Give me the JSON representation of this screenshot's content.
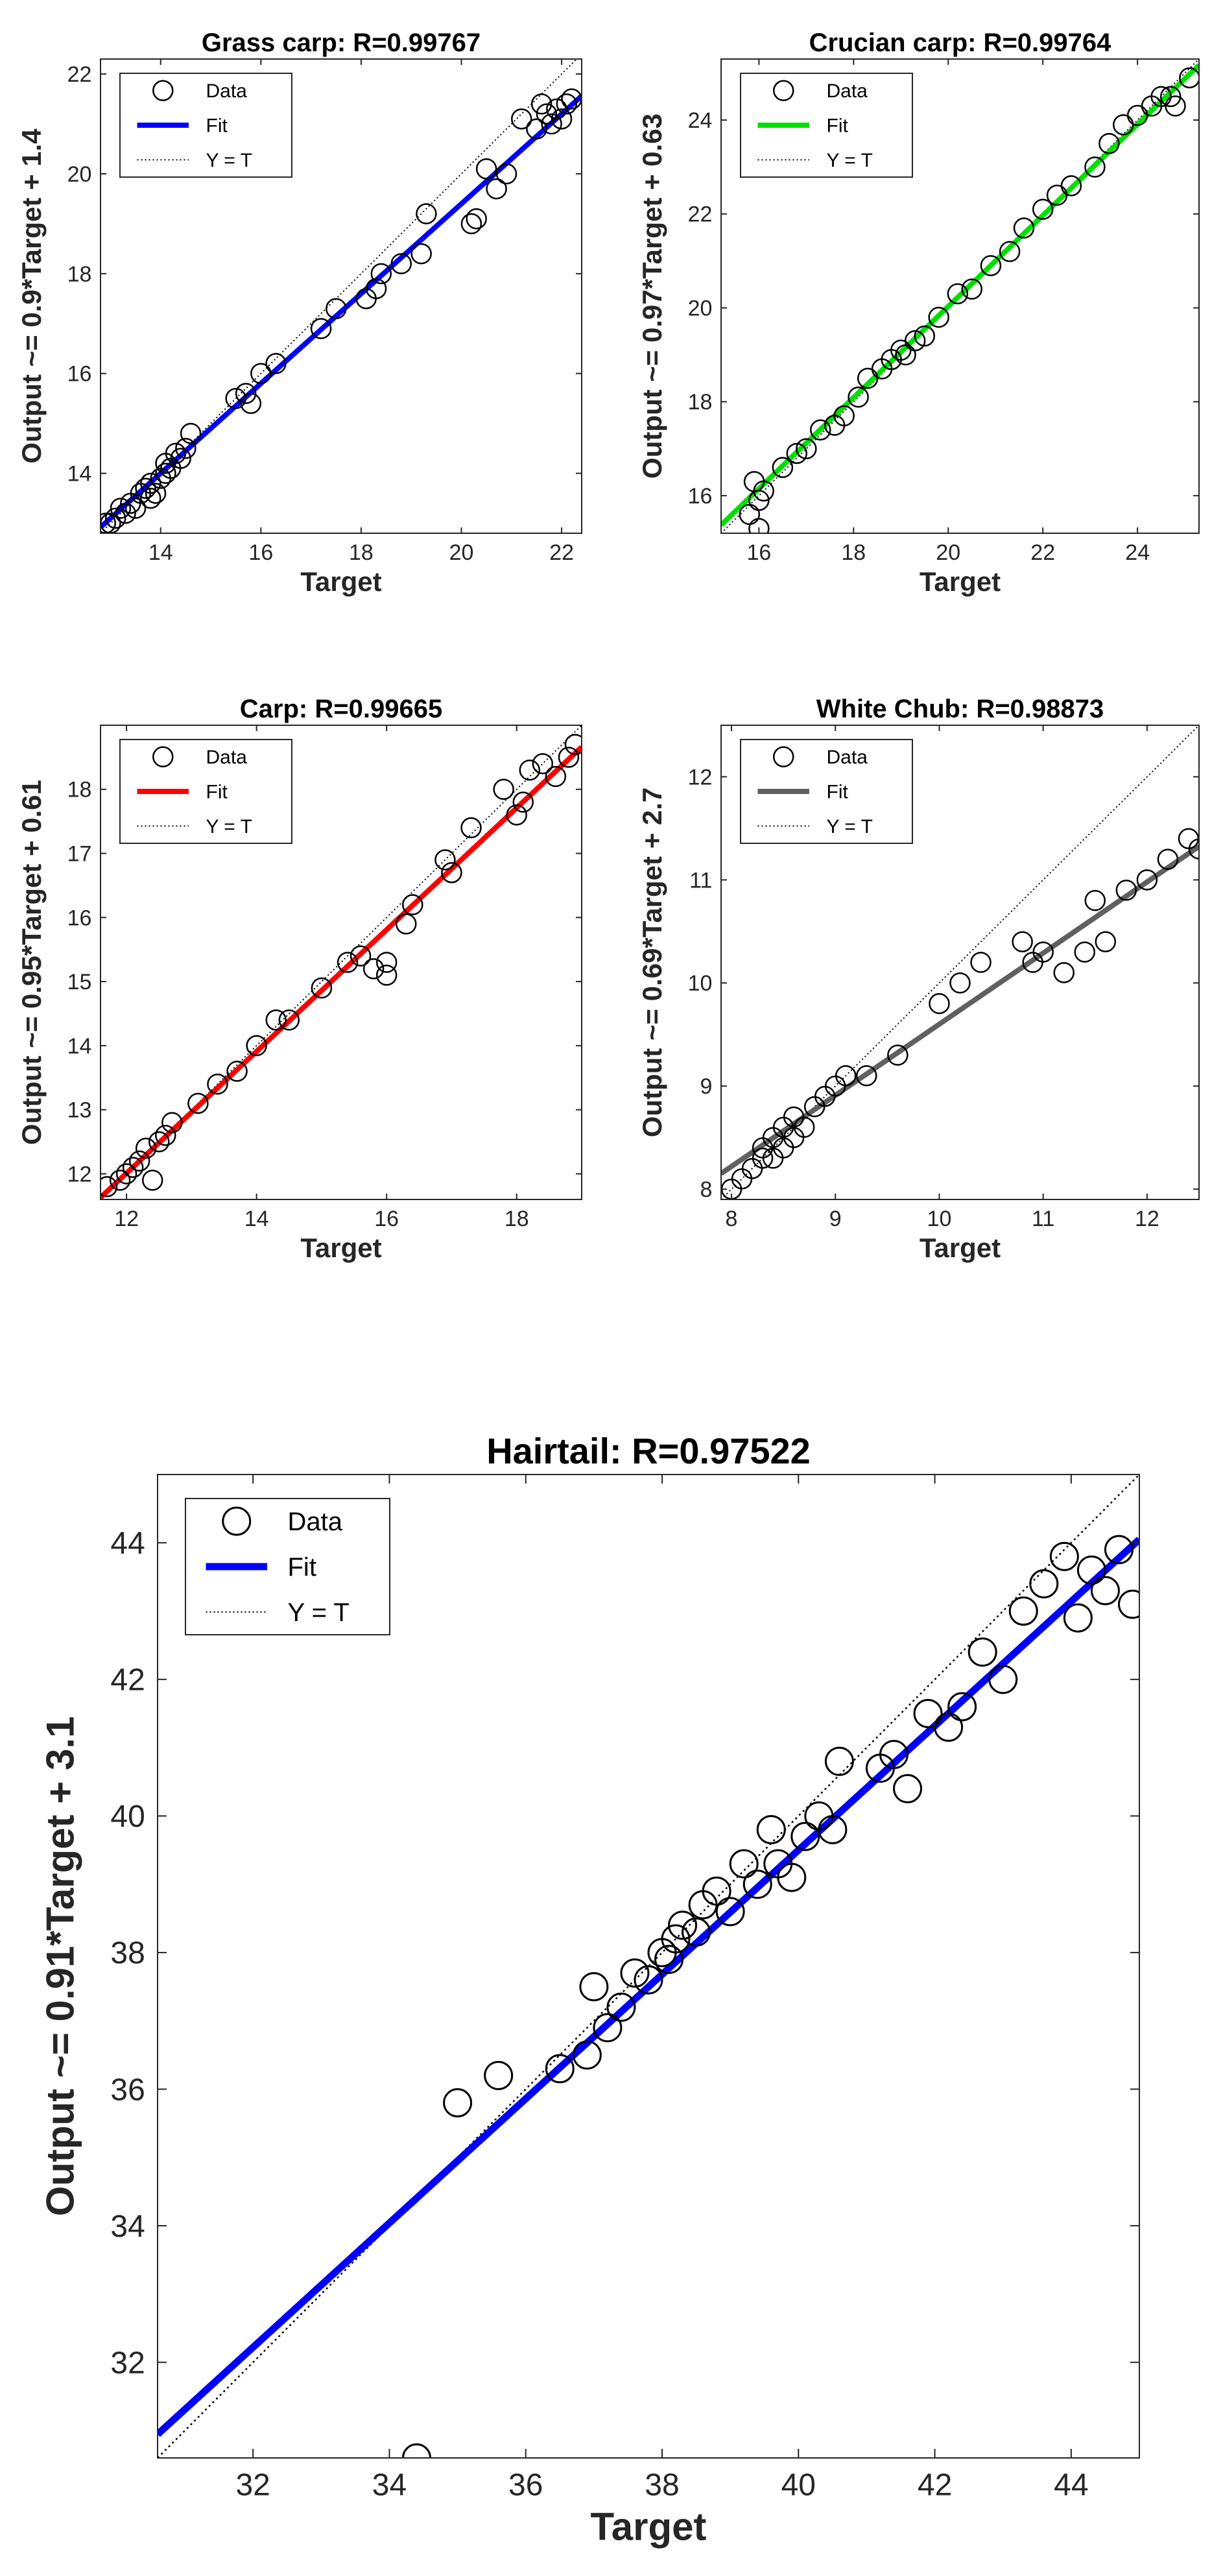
{
  "chart_data": [
    {
      "type": "scatter",
      "title": "Grass carp: R=0.99767",
      "xlabel": "Target",
      "ylabel": "Output ~= 0.9*Target + 1.4",
      "xlim": [
        12.8,
        22.4
      ],
      "ylim": [
        12.8,
        22.3
      ],
      "xticks": [
        14,
        16,
        18,
        20,
        22
      ],
      "yticks": [
        14,
        16,
        18,
        20,
        22
      ],
      "fit": {
        "slope": 0.9,
        "intercept": 1.4,
        "color": "#0000ff"
      },
      "legend": [
        "Data",
        "Fit",
        "Y = T"
      ],
      "points": [
        [
          12.9,
          13.0
        ],
        [
          13.0,
          13.0
        ],
        [
          13.1,
          13.1
        ],
        [
          13.2,
          13.3
        ],
        [
          13.3,
          13.2
        ],
        [
          13.4,
          13.4
        ],
        [
          13.5,
          13.3
        ],
        [
          13.6,
          13.6
        ],
        [
          13.7,
          13.7
        ],
        [
          13.8,
          13.5
        ],
        [
          13.8,
          13.8
        ],
        [
          13.9,
          13.6
        ],
        [
          14.0,
          13.9
        ],
        [
          14.1,
          14.0
        ],
        [
          14.1,
          14.2
        ],
        [
          14.2,
          14.1
        ],
        [
          14.3,
          14.4
        ],
        [
          14.4,
          14.3
        ],
        [
          14.5,
          14.5
        ],
        [
          14.6,
          14.8
        ],
        [
          15.5,
          15.5
        ],
        [
          15.7,
          15.6
        ],
        [
          15.8,
          15.4
        ],
        [
          16.0,
          16.0
        ],
        [
          16.3,
          16.2
        ],
        [
          17.2,
          16.9
        ],
        [
          17.5,
          17.3
        ],
        [
          18.1,
          17.5
        ],
        [
          18.3,
          17.7
        ],
        [
          18.4,
          18.0
        ],
        [
          18.8,
          18.2
        ],
        [
          19.2,
          18.4
        ],
        [
          19.3,
          19.2
        ],
        [
          20.2,
          19.0
        ],
        [
          20.3,
          19.1
        ],
        [
          20.5,
          20.1
        ],
        [
          20.7,
          19.7
        ],
        [
          20.9,
          20.0
        ],
        [
          21.2,
          21.1
        ],
        [
          21.5,
          20.9
        ],
        [
          21.6,
          21.4
        ],
        [
          21.7,
          21.2
        ],
        [
          21.8,
          21.0
        ],
        [
          21.9,
          21.3
        ],
        [
          22.0,
          21.1
        ],
        [
          22.1,
          21.4
        ],
        [
          22.2,
          21.5
        ]
      ]
    },
    {
      "type": "scatter",
      "title": "Crucian carp: R=0.99764",
      "xlabel": "Target",
      "ylabel": "Output ~= 0.97*Target + 0.63",
      "xlim": [
        15.2,
        25.3
      ],
      "ylim": [
        15.2,
        25.3
      ],
      "xticks": [
        16,
        18,
        20,
        22,
        24
      ],
      "yticks": [
        16,
        18,
        20,
        22,
        24
      ],
      "fit": {
        "slope": 0.97,
        "intercept": 0.63,
        "color": "#00e000"
      },
      "legend": [
        "Data",
        "Fit",
        "Y = T"
      ],
      "points": [
        [
          15.8,
          15.6
        ],
        [
          15.9,
          16.3
        ],
        [
          16.0,
          15.3
        ],
        [
          16.0,
          15.9
        ],
        [
          16.1,
          16.1
        ],
        [
          16.5,
          16.6
        ],
        [
          16.8,
          16.9
        ],
        [
          17.0,
          17.0
        ],
        [
          17.3,
          17.4
        ],
        [
          17.6,
          17.5
        ],
        [
          17.8,
          17.7
        ],
        [
          18.1,
          18.1
        ],
        [
          18.3,
          18.5
        ],
        [
          18.6,
          18.7
        ],
        [
          18.8,
          18.9
        ],
        [
          19.0,
          19.1
        ],
        [
          19.1,
          19.0
        ],
        [
          19.3,
          19.3
        ],
        [
          19.5,
          19.4
        ],
        [
          19.8,
          19.8
        ],
        [
          20.2,
          20.3
        ],
        [
          20.5,
          20.4
        ],
        [
          20.9,
          20.9
        ],
        [
          21.3,
          21.2
        ],
        [
          21.6,
          21.7
        ],
        [
          22.0,
          22.1
        ],
        [
          22.3,
          22.4
        ],
        [
          22.6,
          22.6
        ],
        [
          23.1,
          23.0
        ],
        [
          23.4,
          23.5
        ],
        [
          23.7,
          23.9
        ],
        [
          24.0,
          24.1
        ],
        [
          24.3,
          24.3
        ],
        [
          24.5,
          24.5
        ],
        [
          24.7,
          24.5
        ],
        [
          24.8,
          24.3
        ],
        [
          25.1,
          24.9
        ]
      ]
    },
    {
      "type": "scatter",
      "title": "Carp: R=0.99665",
      "xlabel": "Target",
      "ylabel": "Output ~= 0.95*Target + 0.61",
      "xlim": [
        11.6,
        19.0
      ],
      "ylim": [
        11.6,
        19.0
      ],
      "xticks": [
        12,
        14,
        16,
        18
      ],
      "yticks": [
        12,
        13,
        14,
        15,
        16,
        17,
        18
      ],
      "fit": {
        "slope": 0.95,
        "intercept": 0.61,
        "color": "#ff0000"
      },
      "legend": [
        "Data",
        "Fit",
        "Y = T"
      ],
      "points": [
        [
          11.7,
          11.8
        ],
        [
          11.9,
          11.9
        ],
        [
          12.0,
          12.0
        ],
        [
          12.1,
          12.1
        ],
        [
          12.2,
          12.2
        ],
        [
          12.3,
          12.4
        ],
        [
          12.4,
          11.9
        ],
        [
          12.5,
          12.5
        ],
        [
          12.6,
          12.6
        ],
        [
          12.7,
          12.8
        ],
        [
          13.1,
          13.1
        ],
        [
          13.4,
          13.4
        ],
        [
          13.7,
          13.6
        ],
        [
          14.0,
          14.0
        ],
        [
          14.3,
          14.4
        ],
        [
          14.5,
          14.4
        ],
        [
          15.0,
          14.9
        ],
        [
          15.4,
          15.3
        ],
        [
          15.6,
          15.4
        ],
        [
          15.8,
          15.2
        ],
        [
          16.0,
          15.1
        ],
        [
          16.0,
          15.3
        ],
        [
          16.3,
          15.9
        ],
        [
          16.4,
          16.2
        ],
        [
          16.9,
          16.9
        ],
        [
          17.0,
          16.7
        ],
        [
          17.3,
          17.4
        ],
        [
          17.8,
          18.0
        ],
        [
          18.0,
          17.6
        ],
        [
          18.1,
          17.8
        ],
        [
          18.2,
          18.3
        ],
        [
          18.4,
          18.4
        ],
        [
          18.6,
          18.2
        ],
        [
          18.8,
          18.5
        ],
        [
          18.9,
          18.7
        ]
      ]
    },
    {
      "type": "scatter",
      "title": "White Chub: R=0.98873",
      "xlabel": "Target",
      "ylabel": "Output ~= 0.69*Target + 2.7",
      "xlim": [
        7.9,
        12.5
      ],
      "ylim": [
        7.9,
        12.5
      ],
      "xticks": [
        8,
        9,
        10,
        11,
        12
      ],
      "yticks": [
        8,
        9,
        10,
        11,
        12
      ],
      "fit": {
        "slope": 0.69,
        "intercept": 2.7,
        "color": "#606060"
      },
      "legend": [
        "Data",
        "Fit",
        "Y = T"
      ],
      "points": [
        [
          8.0,
          8.0
        ],
        [
          8.1,
          8.1
        ],
        [
          8.2,
          8.2
        ],
        [
          8.3,
          8.3
        ],
        [
          8.3,
          8.4
        ],
        [
          8.4,
          8.3
        ],
        [
          8.4,
          8.5
        ],
        [
          8.5,
          8.4
        ],
        [
          8.5,
          8.6
        ],
        [
          8.6,
          8.5
        ],
        [
          8.6,
          8.7
        ],
        [
          8.7,
          8.6
        ],
        [
          8.8,
          8.8
        ],
        [
          8.9,
          8.9
        ],
        [
          9.0,
          9.0
        ],
        [
          9.1,
          9.1
        ],
        [
          9.3,
          9.1
        ],
        [
          9.6,
          9.3
        ],
        [
          10.0,
          9.8
        ],
        [
          10.2,
          10.0
        ],
        [
          10.4,
          10.2
        ],
        [
          10.8,
          10.4
        ],
        [
          10.9,
          10.2
        ],
        [
          11.0,
          10.3
        ],
        [
          11.2,
          10.1
        ],
        [
          11.4,
          10.3
        ],
        [
          11.5,
          10.8
        ],
        [
          11.6,
          10.4
        ],
        [
          11.8,
          10.9
        ],
        [
          12.0,
          11.0
        ],
        [
          12.2,
          11.2
        ],
        [
          12.4,
          11.4
        ],
        [
          12.5,
          11.3
        ]
      ]
    },
    {
      "type": "scatter",
      "title": "Hairtail: R=0.97522",
      "xlabel": "Target",
      "ylabel": "Output ~= 0.91*Target + 3.1",
      "xlim": [
        30.6,
        45.0
      ],
      "ylim": [
        30.6,
        45.0
      ],
      "xticks": [
        32,
        34,
        36,
        38,
        40,
        42,
        44
      ],
      "yticks": [
        32,
        34,
        36,
        38,
        40,
        42,
        44
      ],
      "fit": {
        "slope": 0.91,
        "intercept": 3.1,
        "color": "#0000ff"
      },
      "legend": [
        "Data",
        "Fit",
        "Y = T"
      ],
      "points": [
        [
          34.4,
          30.6
        ],
        [
          35.0,
          35.8
        ],
        [
          35.6,
          36.2
        ],
        [
          36.5,
          36.3
        ],
        [
          36.9,
          36.5
        ],
        [
          37.0,
          37.5
        ],
        [
          37.2,
          36.9
        ],
        [
          37.4,
          37.2
        ],
        [
          37.6,
          37.7
        ],
        [
          37.8,
          37.6
        ],
        [
          38.0,
          38.0
        ],
        [
          38.1,
          37.9
        ],
        [
          38.2,
          38.2
        ],
        [
          38.3,
          38.4
        ],
        [
          38.5,
          38.3
        ],
        [
          38.6,
          38.7
        ],
        [
          38.8,
          38.9
        ],
        [
          39.0,
          38.6
        ],
        [
          39.2,
          39.3
        ],
        [
          39.4,
          39.0
        ],
        [
          39.6,
          39.8
        ],
        [
          39.7,
          39.3
        ],
        [
          39.9,
          39.1
        ],
        [
          40.1,
          39.7
        ],
        [
          40.3,
          40.0
        ],
        [
          40.5,
          39.8
        ],
        [
          40.6,
          40.8
        ],
        [
          41.2,
          40.7
        ],
        [
          41.4,
          40.9
        ],
        [
          41.6,
          40.4
        ],
        [
          41.9,
          41.5
        ],
        [
          42.2,
          41.3
        ],
        [
          42.4,
          41.6
        ],
        [
          42.7,
          42.4
        ],
        [
          43.0,
          42.0
        ],
        [
          43.3,
          43.0
        ],
        [
          43.6,
          43.4
        ],
        [
          43.9,
          43.8
        ],
        [
          44.1,
          42.9
        ],
        [
          44.3,
          43.6
        ],
        [
          44.5,
          43.3
        ],
        [
          44.7,
          43.9
        ],
        [
          44.9,
          43.1
        ]
      ]
    }
  ]
}
